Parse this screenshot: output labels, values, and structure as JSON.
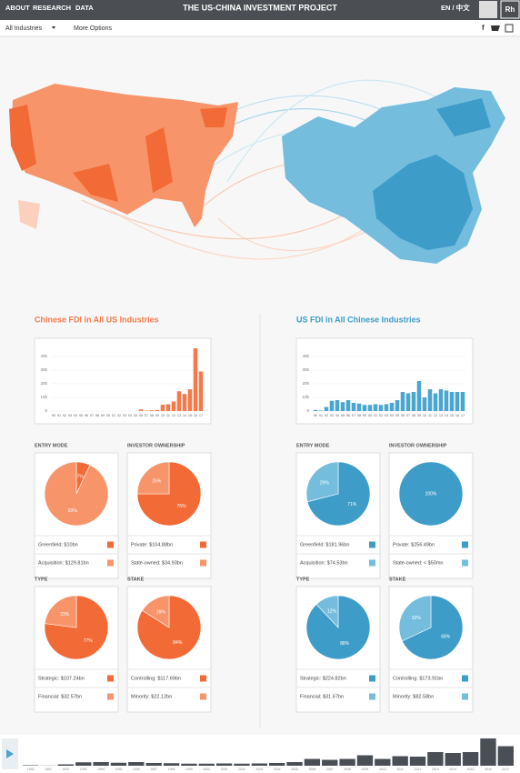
{
  "header": {
    "nav": [
      "ABOUT",
      "RESEARCH",
      "DATA"
    ],
    "title": "THE US-CHINA INVESTMENT PROJECT",
    "language": "EN / 中文",
    "logo": "Rh"
  },
  "toolbar": {
    "industry": "All Industries",
    "options": "More Options"
  },
  "panels": [
    {
      "title": "Chinese FDI in All US Industries",
      "color": "#f47a4a",
      "chart": {
        "type": "bar",
        "color": "#f47a4a",
        "categories": [
          "90",
          "91",
          "92",
          "93",
          "94",
          "95",
          "96",
          "97",
          "98",
          "99",
          "00",
          "01",
          "02",
          "03",
          "04",
          "05",
          "06",
          "07",
          "08",
          "09",
          "10",
          "11",
          "12",
          "13",
          "14",
          "15",
          "16",
          "17"
        ],
        "values": [
          0,
          0,
          0,
          0,
          0,
          0,
          0,
          0,
          0,
          0,
          0,
          0,
          0,
          0,
          0,
          0,
          1.2,
          0.3,
          0.6,
          0.8,
          4.6,
          5,
          7,
          14.5,
          12.5,
          16,
          46,
          29
        ],
        "ylim": [
          0,
          48
        ],
        "yticks": [
          0,
          {
            "value": 10,
            "label": "10b"
          },
          {
            "value": 20,
            "label": "20b"
          },
          {
            "value": 30,
            "label": "30b"
          },
          {
            "value": 40,
            "label": "40b"
          }
        ]
      },
      "pies": [
        {
          "type": "pie",
          "heading": "ENTRY MODE",
          "values": [
            7,
            93
          ],
          "value_labels": [
            "7%",
            "93%"
          ],
          "colors": [
            "#f26a36",
            "#f7946a"
          ],
          "legend": [
            "Greenfield: $10bn",
            "Acquisition: $129.81bn"
          ]
        },
        {
          "type": "pie",
          "heading": "INVESTOR OWNERSHIP",
          "values": [
            75,
            25
          ],
          "value_labels": [
            "75%",
            "25%"
          ],
          "colors": [
            "#f26a36",
            "#f7946a"
          ],
          "legend": [
            "Private: $104.88bn",
            "State-owned: $34.93bn"
          ]
        },
        {
          "type": "pie",
          "heading": "TYPE",
          "values": [
            77,
            23
          ],
          "value_labels": [
            "77%",
            "23%"
          ],
          "colors": [
            "#f26a36",
            "#f7946a"
          ],
          "legend": [
            "Strategic: $107.24bn",
            "Financial: $32.57bn"
          ]
        },
        {
          "type": "pie",
          "heading": "STAKE",
          "values": [
            84,
            16
          ],
          "value_labels": [
            "84%",
            "16%"
          ],
          "colors": [
            "#f26a36",
            "#f7946a"
          ],
          "legend": [
            "Controlling: $117.69bn",
            "Minority: $22.12bn"
          ]
        }
      ]
    },
    {
      "title": "US FDI in All Chinese Industries",
      "color": "#3e9cc8",
      "chart": {
        "type": "bar",
        "color": "#4aa6cf",
        "categories": [
          "90",
          "91",
          "92",
          "93",
          "94",
          "95",
          "96",
          "97",
          "98",
          "99",
          "00",
          "01",
          "02",
          "03",
          "04",
          "05",
          "06",
          "07",
          "08",
          "09",
          "10",
          "11",
          "12",
          "13",
          "14",
          "15",
          "16",
          "17"
        ],
        "values": [
          0.8,
          0.4,
          3,
          7.5,
          8,
          6.5,
          8,
          6,
          5.5,
          4.5,
          4.5,
          5,
          4.5,
          5,
          6,
          8,
          14,
          13,
          14,
          22,
          10,
          16,
          13,
          16,
          15,
          14,
          14,
          14
        ],
        "ylim": [
          0,
          48
        ],
        "yticks": [
          0,
          {
            "value": 10,
            "label": "10b"
          },
          {
            "value": 20,
            "label": "20b"
          },
          {
            "value": 30,
            "label": "30b"
          },
          {
            "value": 40,
            "label": "40b"
          }
        ]
      },
      "pies": [
        {
          "type": "pie",
          "heading": "ENTRY MODE",
          "values": [
            71,
            29
          ],
          "value_labels": [
            "71%",
            "29%"
          ],
          "colors": [
            "#3e9cc8",
            "#74bddd"
          ],
          "legend": [
            "Greenfield: $181.96bn",
            "Acquisition: $74.53bn"
          ]
        },
        {
          "type": "pie",
          "heading": "INVESTOR OWNERSHIP",
          "values": [
            100,
            0
          ],
          "value_labels": [
            "100%",
            null
          ],
          "colors": [
            "#3e9cc8",
            "#74bddd"
          ],
          "legend": [
            "Private: $256.49bn",
            "State-owned: < $50mn"
          ]
        },
        {
          "type": "pie",
          "heading": "TYPE",
          "values": [
            88,
            12
          ],
          "value_labels": [
            "88%",
            "12%"
          ],
          "colors": [
            "#3e9cc8",
            "#74bddd"
          ],
          "legend": [
            "Strategic: $224.82bn",
            "Financial: $31.67bn"
          ]
        },
        {
          "type": "pie",
          "heading": "STAKE",
          "values": [
            68,
            32
          ],
          "value_labels": [
            "68%",
            "32%"
          ],
          "colors": [
            "#3e9cc8",
            "#74bddd"
          ],
          "legend": [
            "Controlling: $173.91bn",
            "Minority: $82.58bn"
          ]
        }
      ]
    }
  ],
  "timeline": {
    "type": "bar",
    "color": "#4a4f55",
    "categories": [
      "1990",
      "1991",
      "1992",
      "1993",
      "1994",
      "1995",
      "1996",
      "1997",
      "1998",
      "1999",
      "2000",
      "2001",
      "2002",
      "2003",
      "2004",
      "2005",
      "2006",
      "2007",
      "2008",
      "2009",
      "2010",
      "2011",
      "2012",
      "2013",
      "2014",
      "2015",
      "2016",
      "2017"
    ],
    "values": [
      1,
      0.4,
      3,
      7.5,
      8,
      6.5,
      8,
      6,
      5.5,
      4.5,
      4.5,
      5,
      4.5,
      5,
      6,
      8,
      15,
      13,
      15,
      23,
      15,
      21,
      20,
      30,
      28,
      30,
      60,
      43
    ]
  }
}
